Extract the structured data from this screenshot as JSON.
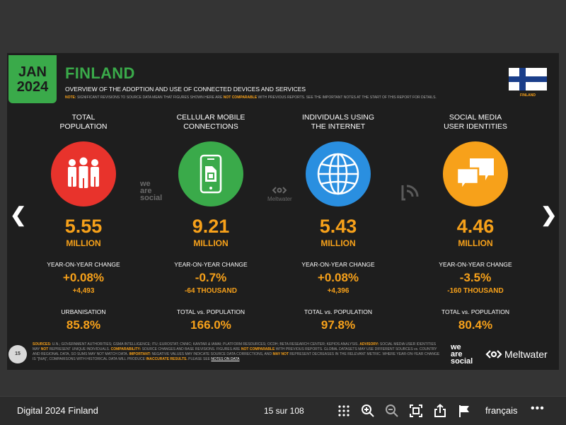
{
  "slide": {
    "badge": {
      "month": "JAN",
      "year": "2024"
    },
    "title": "FINLAND",
    "subtitle": "OVERVIEW OF THE ADOPTION AND USE OF CONNECTED DEVICES AND SERVICES",
    "note": {
      "label": "NOTE:",
      "text1": "SIGNIFICANT REVISIONS TO SOURCE DATA MEAN THAT FIGURES SHOWN HERE ARE",
      "highlight": "NOT COMPARABLE",
      "text2": "WITH PREVIOUS REPORTS. SEE THE IMPORTANT NOTES AT THE START OF THIS REPORT FOR DETAILS."
    },
    "flag_label": "FINLAND",
    "columns": [
      {
        "header_line1": "TOTAL",
        "header_line2": "POPULATION",
        "icon": "people-icon",
        "color": "#e8332c",
        "value": "5.55",
        "unit": "MILLION",
        "yoy_label": "YEAR-ON-YEAR CHANGE",
        "yoy": "+0.08%",
        "yoy_abs": "+4,493",
        "stat_label": "URBANISATION",
        "stat_value": "85.8%"
      },
      {
        "header_line1": "CELLULAR MOBILE",
        "header_line2": "CONNECTIONS",
        "icon": "mobile-phone-icon",
        "color": "#3aaa4a",
        "value": "9.21",
        "unit": "MILLION",
        "yoy_label": "YEAR-ON-YEAR CHANGE",
        "yoy": "-0.7%",
        "yoy_abs": "-64 THOUSAND",
        "stat_label": "TOTAL vs. POPULATION",
        "stat_value": "166.0%"
      },
      {
        "header_line1": "INDIVIDUALS USING",
        "header_line2": "THE INTERNET",
        "icon": "globe-icon",
        "color": "#2a8fe0",
        "value": "5.43",
        "unit": "MILLION",
        "yoy_label": "YEAR-ON-YEAR CHANGE",
        "yoy": "+0.08%",
        "yoy_abs": "+4,396",
        "stat_label": "TOTAL vs. POPULATION",
        "stat_value": "97.8%"
      },
      {
        "header_line1": "SOCIAL MEDIA",
        "header_line2": "USER IDENTITIES",
        "icon": "chat-bubbles-icon",
        "color": "#f7a11a",
        "value": "4.46",
        "unit": "MILLION",
        "yoy_label": "YEAR-ON-YEAR CHANGE",
        "yoy": "-3.5%",
        "yoy_abs": "-160 THOUSAND",
        "stat_label": "TOTAL vs. POPULATION",
        "stat_value": "80.4%"
      }
    ],
    "brand_was": [
      "we",
      "are",
      "social"
    ],
    "brand_mw": "Meltwater",
    "page_number": "15",
    "sources": {
      "label": "SOURCES:",
      "text1": "U.N.; GOVERNMENT AUTHORITIES; GSMA INTELLIGENCE; ITU; EUROSTAT; CNNIC; KANTAR & IAMAI; PLATFORM RESOURCES; OCDH; BETA RESEARCH CENTER; KEPIOS ANALYSIS.",
      "advisory_label": "ADVISORY:",
      "text2": "SOCIAL MEDIA USER IDENTITIES MAY",
      "not1": "NOT",
      "text3": "REPRESENT UNIQUE INDIVIDUALS.",
      "comp_label": "COMPARABILITY:",
      "text4": "SOURCE CHANGES AND BASE REVISIONS. FIGURES ARE",
      "notcomp": "NOT COMPARABLE",
      "text5": "WITH PREVIOUS REPORTS. GLOBAL DATASETS MAY USE DIFFERENT SOURCES vs. COUNTRY AND REGIONAL DATA, SO SUMS MAY NOT MATCH DATA.",
      "important_label": "IMPORTANT:",
      "text6": "NEGATIVE VALUES MAY INDICATE SOURCE DATA CORRECTIONS, AND",
      "maynot": "MAY NOT",
      "text7": "REPRESENT DECREASES IN THE RELEVANT METRIC. WHERE YEAR-ON-YEAR CHANGE IS \"[N/A]\", COMPARISONS WITH HISTORICAL DATA WILL PRODUCE",
      "inaccurate": "INACCURATE RESULTS.",
      "text8": "PLEASE SEE",
      "notes_link": "NOTES ON DATA"
    }
  },
  "viewer": {
    "prev_arrow": "❮",
    "next_arrow": "❯",
    "doc_title": "Digital 2024 Finland",
    "pager": "15 sur 108",
    "language": "français",
    "more": "•••"
  }
}
